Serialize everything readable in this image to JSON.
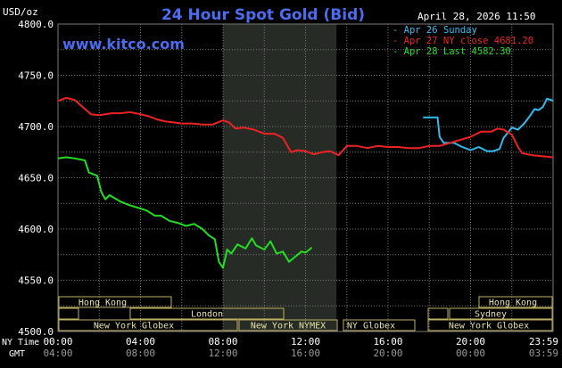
{
  "header": {
    "title": "24 Hour Spot Gold (Bid)",
    "currency": "USD/oz",
    "website": "www.kitco.com",
    "timestamp": "April 28, 2026 11:50"
  },
  "colors": {
    "background": "#000000",
    "plot_background": "#000000",
    "grid": "#7a7a7a",
    "text": "#ffffff",
    "title": "#4c6cf0",
    "highlight": "#262b26",
    "session_box": "#e8e4a6",
    "session_border": "#c0b060"
  },
  "legend": [
    {
      "text": "- Apr 26 Sunday",
      "color": "#33bbee"
    },
    {
      "text": "- Apr 27 NY close 4681.20",
      "color": "#ee2222"
    },
    {
      "text": "- Apr 28 Last 4582.30",
      "color": "#22dd22"
    }
  ],
  "axis": {
    "row1_label": "NY Time",
    "row2_label": "GMT",
    "ny_ticks": [
      "00:00",
      "04:00",
      "08:00",
      "12:00",
      "16:00",
      "20:00",
      "23:59"
    ],
    "gmt_ticks": [
      "04:00",
      "08:00",
      "12:00",
      "16:00",
      "20:00",
      "00:00",
      "03:59"
    ],
    "y_ticks": [
      "4800.0",
      "4750.0",
      "4700.0",
      "4650.0",
      "4600.0",
      "4550.0",
      "4500.0"
    ]
  },
  "sessions": {
    "hong_kong_left": "Hong Kong",
    "london": "London",
    "new_york_globex_left": "New York Globex",
    "new_york_nymex": "New York NYMEX",
    "ny_globex": "NY Globex",
    "hong_kong_right": "Hong Kong",
    "sydney": "Sydney",
    "new_york_globex_right": "New York Globex"
  },
  "chart_data": {
    "type": "line",
    "title": "24 Hour Spot Gold (Bid)",
    "ylabel": "USD/oz",
    "xlabel": "NY Time",
    "x_range_hours": [
      0,
      24
    ],
    "ylim": [
      4500,
      4800
    ],
    "y_ticks": [
      4500,
      4550,
      4600,
      4650,
      4700,
      4750,
      4800
    ],
    "grid": true,
    "legend_position": "top-right",
    "highlight_hours": [
      8,
      13.5
    ],
    "series": [
      {
        "name": "Apr 26 Sunday",
        "color": "#33bbee",
        "points": [
          [
            17.7,
            4709
          ],
          [
            18.4,
            4709
          ],
          [
            18.5,
            4690
          ],
          [
            18.7,
            4684
          ],
          [
            19.2,
            4684
          ],
          [
            19.6,
            4680
          ],
          [
            20.0,
            4677
          ],
          [
            20.4,
            4680
          ],
          [
            20.8,
            4676
          ],
          [
            21.1,
            4676
          ],
          [
            21.4,
            4678
          ],
          [
            21.6,
            4689
          ],
          [
            22.0,
            4699
          ],
          [
            22.3,
            4697
          ],
          [
            22.6,
            4703
          ],
          [
            22.9,
            4711
          ],
          [
            23.1,
            4717
          ],
          [
            23.3,
            4716
          ],
          [
            23.5,
            4719
          ],
          [
            23.7,
            4727
          ],
          [
            23.9,
            4726
          ],
          [
            24.0,
            4725
          ]
        ]
      },
      {
        "name": "Apr 27 NY close 4681.20",
        "color": "#ee2222",
        "points": [
          [
            0.0,
            4725
          ],
          [
            0.4,
            4728
          ],
          [
            0.8,
            4726
          ],
          [
            1.2,
            4719
          ],
          [
            1.6,
            4712
          ],
          [
            2.0,
            4711
          ],
          [
            2.6,
            4713
          ],
          [
            3.0,
            4713
          ],
          [
            3.5,
            4714
          ],
          [
            4.0,
            4712
          ],
          [
            4.4,
            4710
          ],
          [
            4.8,
            4707
          ],
          [
            5.2,
            4705
          ],
          [
            5.6,
            4704
          ],
          [
            6.0,
            4703
          ],
          [
            6.5,
            4703
          ],
          [
            7.0,
            4702
          ],
          [
            7.5,
            4702
          ],
          [
            8.0,
            4706
          ],
          [
            8.3,
            4704
          ],
          [
            8.6,
            4698
          ],
          [
            9.0,
            4699
          ],
          [
            9.5,
            4697
          ],
          [
            10.0,
            4693
          ],
          [
            10.5,
            4693
          ],
          [
            10.9,
            4689
          ],
          [
            11.3,
            4675
          ],
          [
            11.6,
            4677
          ],
          [
            12.0,
            4676
          ],
          [
            12.4,
            4673
          ],
          [
            12.8,
            4675
          ],
          [
            13.2,
            4676
          ],
          [
            13.6,
            4672
          ],
          [
            14.0,
            4681
          ],
          [
            14.5,
            4681
          ],
          [
            15.0,
            4679
          ],
          [
            15.5,
            4681
          ],
          [
            16.0,
            4680
          ],
          [
            16.5,
            4680
          ],
          [
            17.0,
            4679
          ],
          [
            17.5,
            4679
          ],
          [
            18.0,
            4681
          ],
          [
            18.5,
            4681
          ],
          [
            19.0,
            4684
          ],
          [
            19.5,
            4687
          ],
          [
            20.0,
            4690
          ],
          [
            20.5,
            4695
          ],
          [
            21.0,
            4695
          ],
          [
            21.3,
            4698
          ],
          [
            21.6,
            4697
          ],
          [
            22.0,
            4692
          ],
          [
            22.3,
            4680
          ],
          [
            22.5,
            4674
          ],
          [
            23.0,
            4672
          ],
          [
            23.5,
            4671
          ],
          [
            24.0,
            4670
          ]
        ]
      },
      {
        "name": "Apr 28 Last 4582.30",
        "color": "#22dd22",
        "points": [
          [
            0.0,
            4669
          ],
          [
            0.4,
            4670
          ],
          [
            0.8,
            4669
          ],
          [
            1.3,
            4667
          ],
          [
            1.5,
            4655
          ],
          [
            1.9,
            4652
          ],
          [
            2.1,
            4636
          ],
          [
            2.3,
            4629
          ],
          [
            2.5,
            4633
          ],
          [
            3.0,
            4627
          ],
          [
            3.5,
            4623
          ],
          [
            4.0,
            4620
          ],
          [
            4.3,
            4618
          ],
          [
            4.7,
            4613
          ],
          [
            5.0,
            4613
          ],
          [
            5.4,
            4608
          ],
          [
            5.8,
            4606
          ],
          [
            6.2,
            4603
          ],
          [
            6.6,
            4605
          ],
          [
            7.0,
            4600
          ],
          [
            7.3,
            4594
          ],
          [
            7.6,
            4590
          ],
          [
            7.8,
            4568
          ],
          [
            8.0,
            4562
          ],
          [
            8.2,
            4580
          ],
          [
            8.4,
            4576
          ],
          [
            8.7,
            4585
          ],
          [
            9.1,
            4581
          ],
          [
            9.4,
            4591
          ],
          [
            9.6,
            4584
          ],
          [
            10.0,
            4580
          ],
          [
            10.3,
            4588
          ],
          [
            10.6,
            4576
          ],
          [
            10.9,
            4578
          ],
          [
            11.2,
            4568
          ],
          [
            11.5,
            4573
          ],
          [
            11.8,
            4578
          ],
          [
            12.0,
            4577
          ],
          [
            12.2,
            4580
          ],
          [
            12.3,
            4582
          ]
        ]
      }
    ]
  }
}
